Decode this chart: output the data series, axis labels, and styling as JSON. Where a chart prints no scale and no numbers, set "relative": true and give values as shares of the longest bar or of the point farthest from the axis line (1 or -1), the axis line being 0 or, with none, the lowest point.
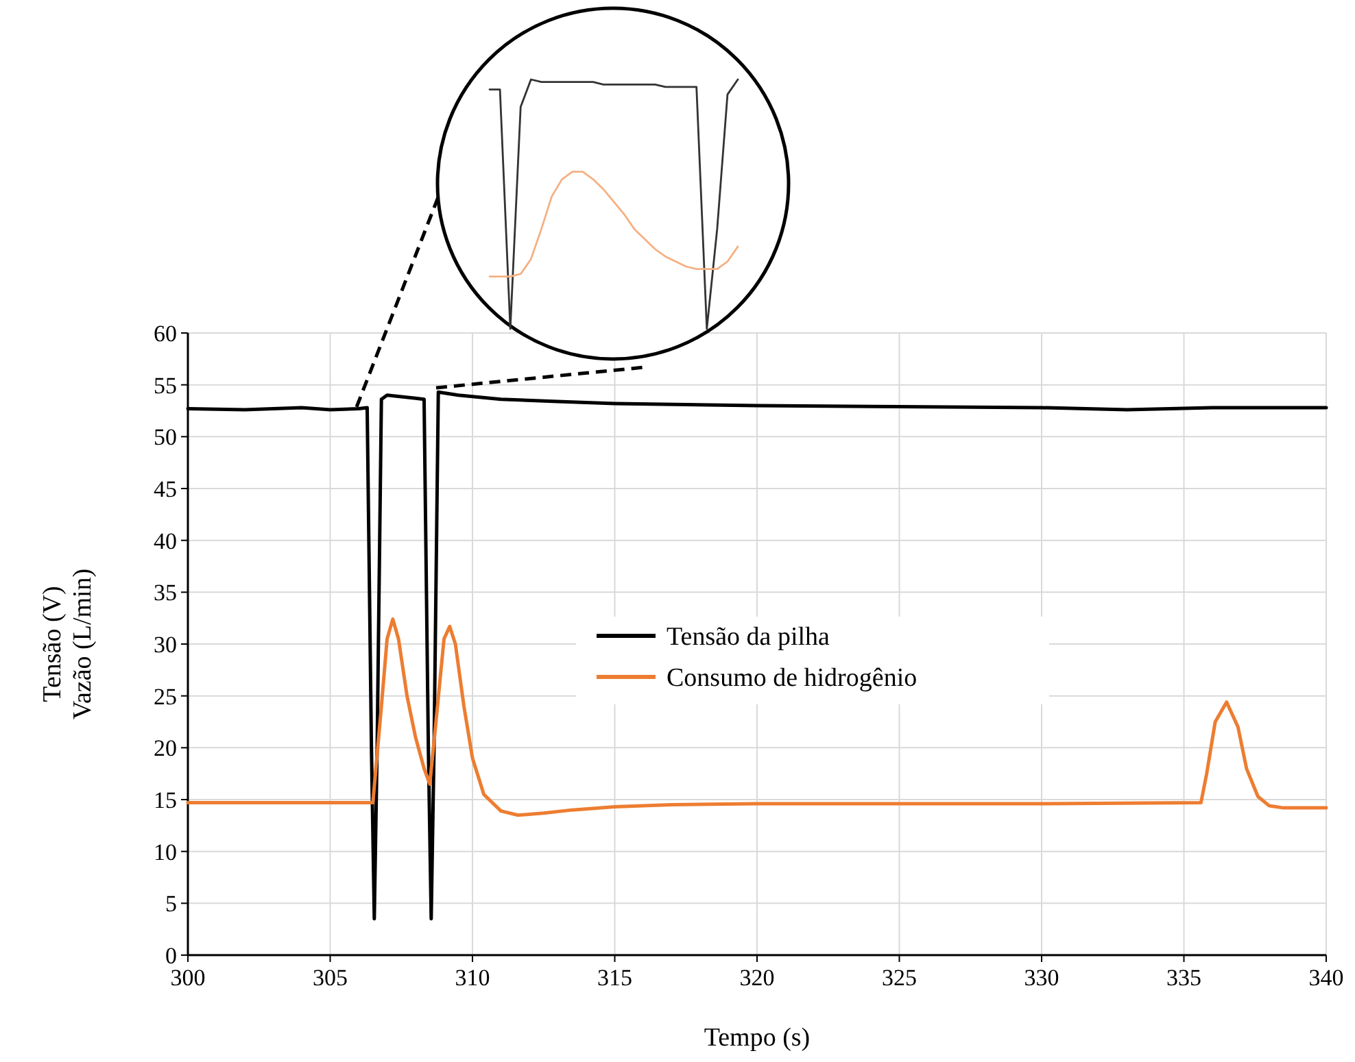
{
  "chart_data": [
    {
      "type": "line",
      "xlabel": "Tempo (s)",
      "ylabel": "Tensão (V)\nVazão (L/min)",
      "xlim": [
        300,
        340
      ],
      "xticks": [
        300,
        305,
        310,
        315,
        320,
        325,
        330,
        335,
        340
      ],
      "ylim": [
        0,
        60
      ],
      "yticks": [
        0,
        5,
        10,
        15,
        20,
        25,
        30,
        35,
        40,
        45,
        50,
        55,
        60
      ],
      "grid": true,
      "legend": "center",
      "marker": "none",
      "line_style": "solid",
      "series": [
        {
          "name": "Tensão da pilha",
          "color": "#000000",
          "x": [
            300,
            302,
            304,
            305,
            306,
            306.3,
            306.45,
            306.55,
            306.65,
            306.8,
            307,
            308,
            308.3,
            308.45,
            308.55,
            308.65,
            308.8,
            309.5,
            311,
            313,
            315,
            320,
            325,
            330,
            333,
            336,
            340
          ],
          "values": [
            52.7,
            52.6,
            52.8,
            52.6,
            52.7,
            52.8,
            20,
            3.5,
            20,
            53.6,
            54.0,
            53.7,
            53.6,
            20,
            3.5,
            20,
            54.3,
            54.0,
            53.6,
            53.4,
            53.2,
            53.0,
            52.9,
            52.8,
            52.6,
            52.8,
            52.8
          ]
        },
        {
          "name": "Consumo de hidrogênio",
          "color": "#ed7d31",
          "x": [
            300,
            303,
            306.5,
            306.8,
            307,
            307.2,
            307.4,
            307.7,
            308,
            308.3,
            308.5,
            308.7,
            309,
            309.2,
            309.4,
            309.7,
            310,
            310.4,
            311,
            311.6,
            312.5,
            313.5,
            315,
            317,
            320,
            325,
            330,
            335.6,
            335.8,
            336.1,
            336.5,
            336.9,
            337.2,
            337.6,
            338,
            338.5,
            340
          ],
          "values": [
            14.7,
            14.7,
            14.7,
            24,
            30.5,
            32.4,
            30.5,
            25,
            21,
            18,
            16.5,
            22,
            30.5,
            31.7,
            30,
            24,
            19,
            15.5,
            13.9,
            13.5,
            13.7,
            14.0,
            14.3,
            14.5,
            14.6,
            14.6,
            14.6,
            14.7,
            17.5,
            22.5,
            24.4,
            22,
            18,
            15.3,
            14.4,
            14.2,
            14.2
          ]
        }
      ]
    },
    {
      "type": "line",
      "relative": true,
      "marker": "none",
      "line_style": "solid",
      "categories": [
        null,
        null,
        null,
        null,
        null,
        null,
        null,
        null,
        null,
        null,
        null,
        null,
        null,
        null,
        null,
        null,
        null,
        null,
        null,
        null,
        null,
        null,
        null,
        null,
        null
      ],
      "series": [
        {
          "color": "#333333",
          "values": [
            0.96,
            0.96,
            0,
            0.89,
            1,
            0.99,
            0.99,
            0.99,
            0.99,
            0.99,
            0.99,
            0.98,
            0.98,
            0.98,
            0.98,
            0.98,
            0.98,
            0.97,
            0.97,
            0.97,
            0.97,
            0,
            0.4,
            0.94,
            1
          ]
        },
        {
          "color": "#f4b183",
          "values": [
            0.21,
            0.21,
            0.21,
            0.22,
            0.28,
            0.4,
            0.53,
            0.6,
            0.63,
            0.63,
            0.6,
            0.56,
            0.51,
            0.46,
            0.4,
            0.36,
            0.32,
            0.29,
            0.27,
            0.25,
            0.24,
            0.24,
            0.24,
            0.27,
            0.33
          ]
        }
      ]
    }
  ]
}
